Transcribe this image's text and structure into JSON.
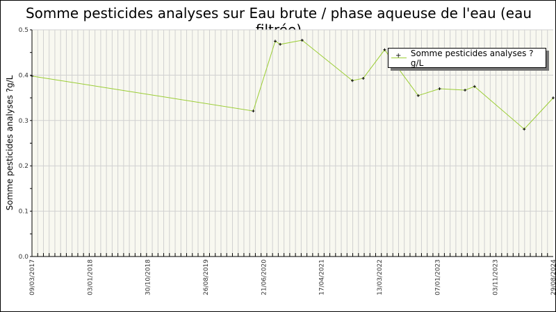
{
  "chart_data": {
    "type": "line",
    "title": "Somme pesticides analyses sur Eau brute / phase aqueuse de l'eau (eau filtrée)",
    "xlabel": "",
    "ylabel": "Somme pesticides analyses ?g/L",
    "ylim": [
      0,
      0.5
    ],
    "xlim": [
      "09/03/2017",
      "29/08/2024"
    ],
    "x_tick_labels": [
      "09/03/2017",
      "03/01/2018",
      "30/10/2018",
      "26/08/2019",
      "21/06/2020",
      "17/04/2021",
      "13/03/2022",
      "07/01/2023",
      "03/11/2023",
      "29/08/2024"
    ],
    "y_tick_labels": [
      "0.0",
      "0.1",
      "0.2",
      "0.3",
      "0.4",
      "0.5"
    ],
    "grid": true,
    "legend_position": "top-right",
    "series": [
      {
        "name": "Somme pesticides analyses ?g/L",
        "color": "#9acd32",
        "x": [
          "09/03/2017",
          "11/05/2020",
          "03/09/2020",
          "29/09/2020",
          "22/01/2021",
          "12/10/2021",
          "08/12/2021",
          "30/03/2022",
          "22/09/2022",
          "12/01/2023",
          "25/05/2023",
          "14/07/2023",
          "30/03/2024",
          "29/08/2024"
        ],
        "values": [
          0.398,
          0.321,
          0.475,
          0.468,
          0.477,
          0.388,
          0.393,
          0.456,
          0.355,
          0.37,
          0.367,
          0.375,
          0.281,
          0.35
        ]
      }
    ]
  }
}
